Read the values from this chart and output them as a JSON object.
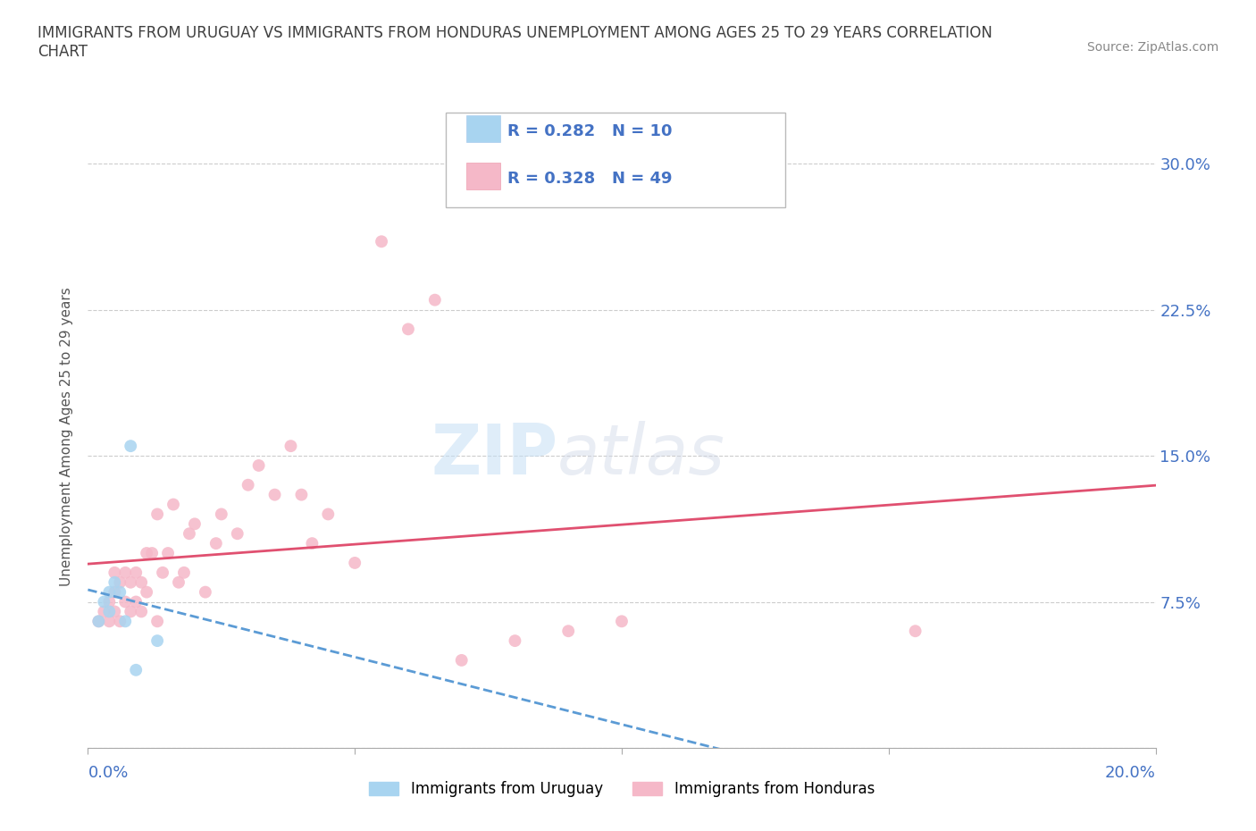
{
  "title": "IMMIGRANTS FROM URUGUAY VS IMMIGRANTS FROM HONDURAS UNEMPLOYMENT AMONG AGES 25 TO 29 YEARS CORRELATION\nCHART",
  "source": "Source: ZipAtlas.com",
  "ylabel": "Unemployment Among Ages 25 to 29 years",
  "xlim": [
    0.0,
    0.2
  ],
  "ylim": [
    0.0,
    0.32
  ],
  "ytick_values": [
    0.0,
    0.075,
    0.15,
    0.225,
    0.3
  ],
  "ytick_labels": [
    "",
    "7.5%",
    "15.0%",
    "22.5%",
    "30.0%"
  ],
  "legend_r_uruguay": "R = 0.282",
  "legend_n_uruguay": "N = 10",
  "legend_r_honduras": "R = 0.328",
  "legend_n_honduras": "N = 49",
  "legend_label_uruguay": "Immigrants from Uruguay",
  "legend_label_honduras": "Immigrants from Honduras",
  "color_uruguay": "#a8d4f0",
  "color_honduras": "#f5b8c8",
  "color_trendline_uruguay": "#5b9bd5",
  "color_trendline_honduras": "#e05070",
  "color_axis_labels": "#4472c4",
  "color_title": "#404040",
  "watermark_zip": "ZIP",
  "watermark_atlas": "atlas",
  "uruguay_x": [
    0.002,
    0.003,
    0.004,
    0.004,
    0.005,
    0.006,
    0.007,
    0.008,
    0.009,
    0.013
  ],
  "uruguay_y": [
    0.065,
    0.075,
    0.07,
    0.08,
    0.085,
    0.08,
    0.065,
    0.155,
    0.04,
    0.055
  ],
  "honduras_x": [
    0.002,
    0.003,
    0.004,
    0.004,
    0.005,
    0.005,
    0.005,
    0.006,
    0.006,
    0.007,
    0.007,
    0.008,
    0.008,
    0.009,
    0.009,
    0.01,
    0.01,
    0.011,
    0.011,
    0.012,
    0.013,
    0.013,
    0.014,
    0.015,
    0.016,
    0.017,
    0.018,
    0.019,
    0.02,
    0.022,
    0.024,
    0.025,
    0.028,
    0.03,
    0.032,
    0.035,
    0.038,
    0.04,
    0.042,
    0.045,
    0.05,
    0.055,
    0.06,
    0.065,
    0.07,
    0.08,
    0.09,
    0.1,
    0.155
  ],
  "honduras_y": [
    0.065,
    0.07,
    0.065,
    0.075,
    0.07,
    0.08,
    0.09,
    0.065,
    0.085,
    0.075,
    0.09,
    0.07,
    0.085,
    0.075,
    0.09,
    0.07,
    0.085,
    0.08,
    0.1,
    0.1,
    0.065,
    0.12,
    0.09,
    0.1,
    0.125,
    0.085,
    0.09,
    0.11,
    0.115,
    0.08,
    0.105,
    0.12,
    0.11,
    0.135,
    0.145,
    0.13,
    0.155,
    0.13,
    0.105,
    0.12,
    0.095,
    0.26,
    0.215,
    0.23,
    0.045,
    0.055,
    0.06,
    0.065,
    0.06
  ],
  "grid_color": "#cccccc",
  "background_color": "#ffffff"
}
